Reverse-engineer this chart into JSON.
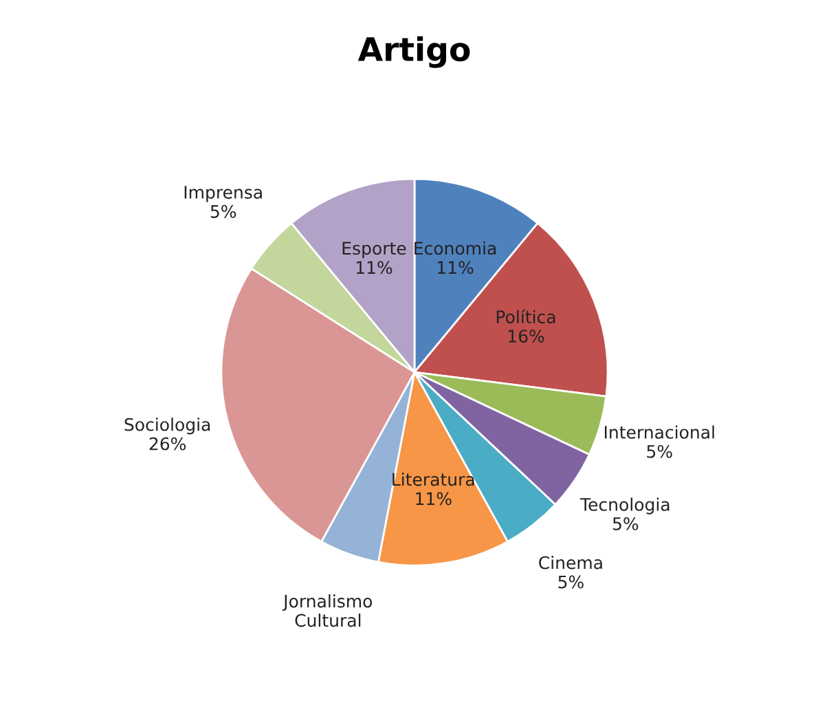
{
  "chart_data": {
    "type": "pie",
    "title": "Artigo",
    "categories": [
      "Economia",
      "Política",
      "Internacional",
      "Tecnologia",
      "Cinema",
      "Literatura",
      "Jornalismo Cultural",
      "Sociologia",
      "Imprensa",
      "Esporte"
    ],
    "values": [
      11,
      16,
      5,
      5,
      5,
      11,
      5,
      26,
      5,
      11
    ],
    "value_labels": [
      "11%",
      "16%",
      "5%",
      "5%",
      "5%",
      "11%",
      null,
      "26%",
      "5%",
      "11%"
    ],
    "colors": [
      "#4f81bd",
      "#c0504d",
      "#9bbb59",
      "#8064a2",
      "#4bacc6",
      "#f79646",
      "#95b3d7",
      "#d99694",
      "#c3d69b",
      "#b3a2c7"
    ]
  }
}
